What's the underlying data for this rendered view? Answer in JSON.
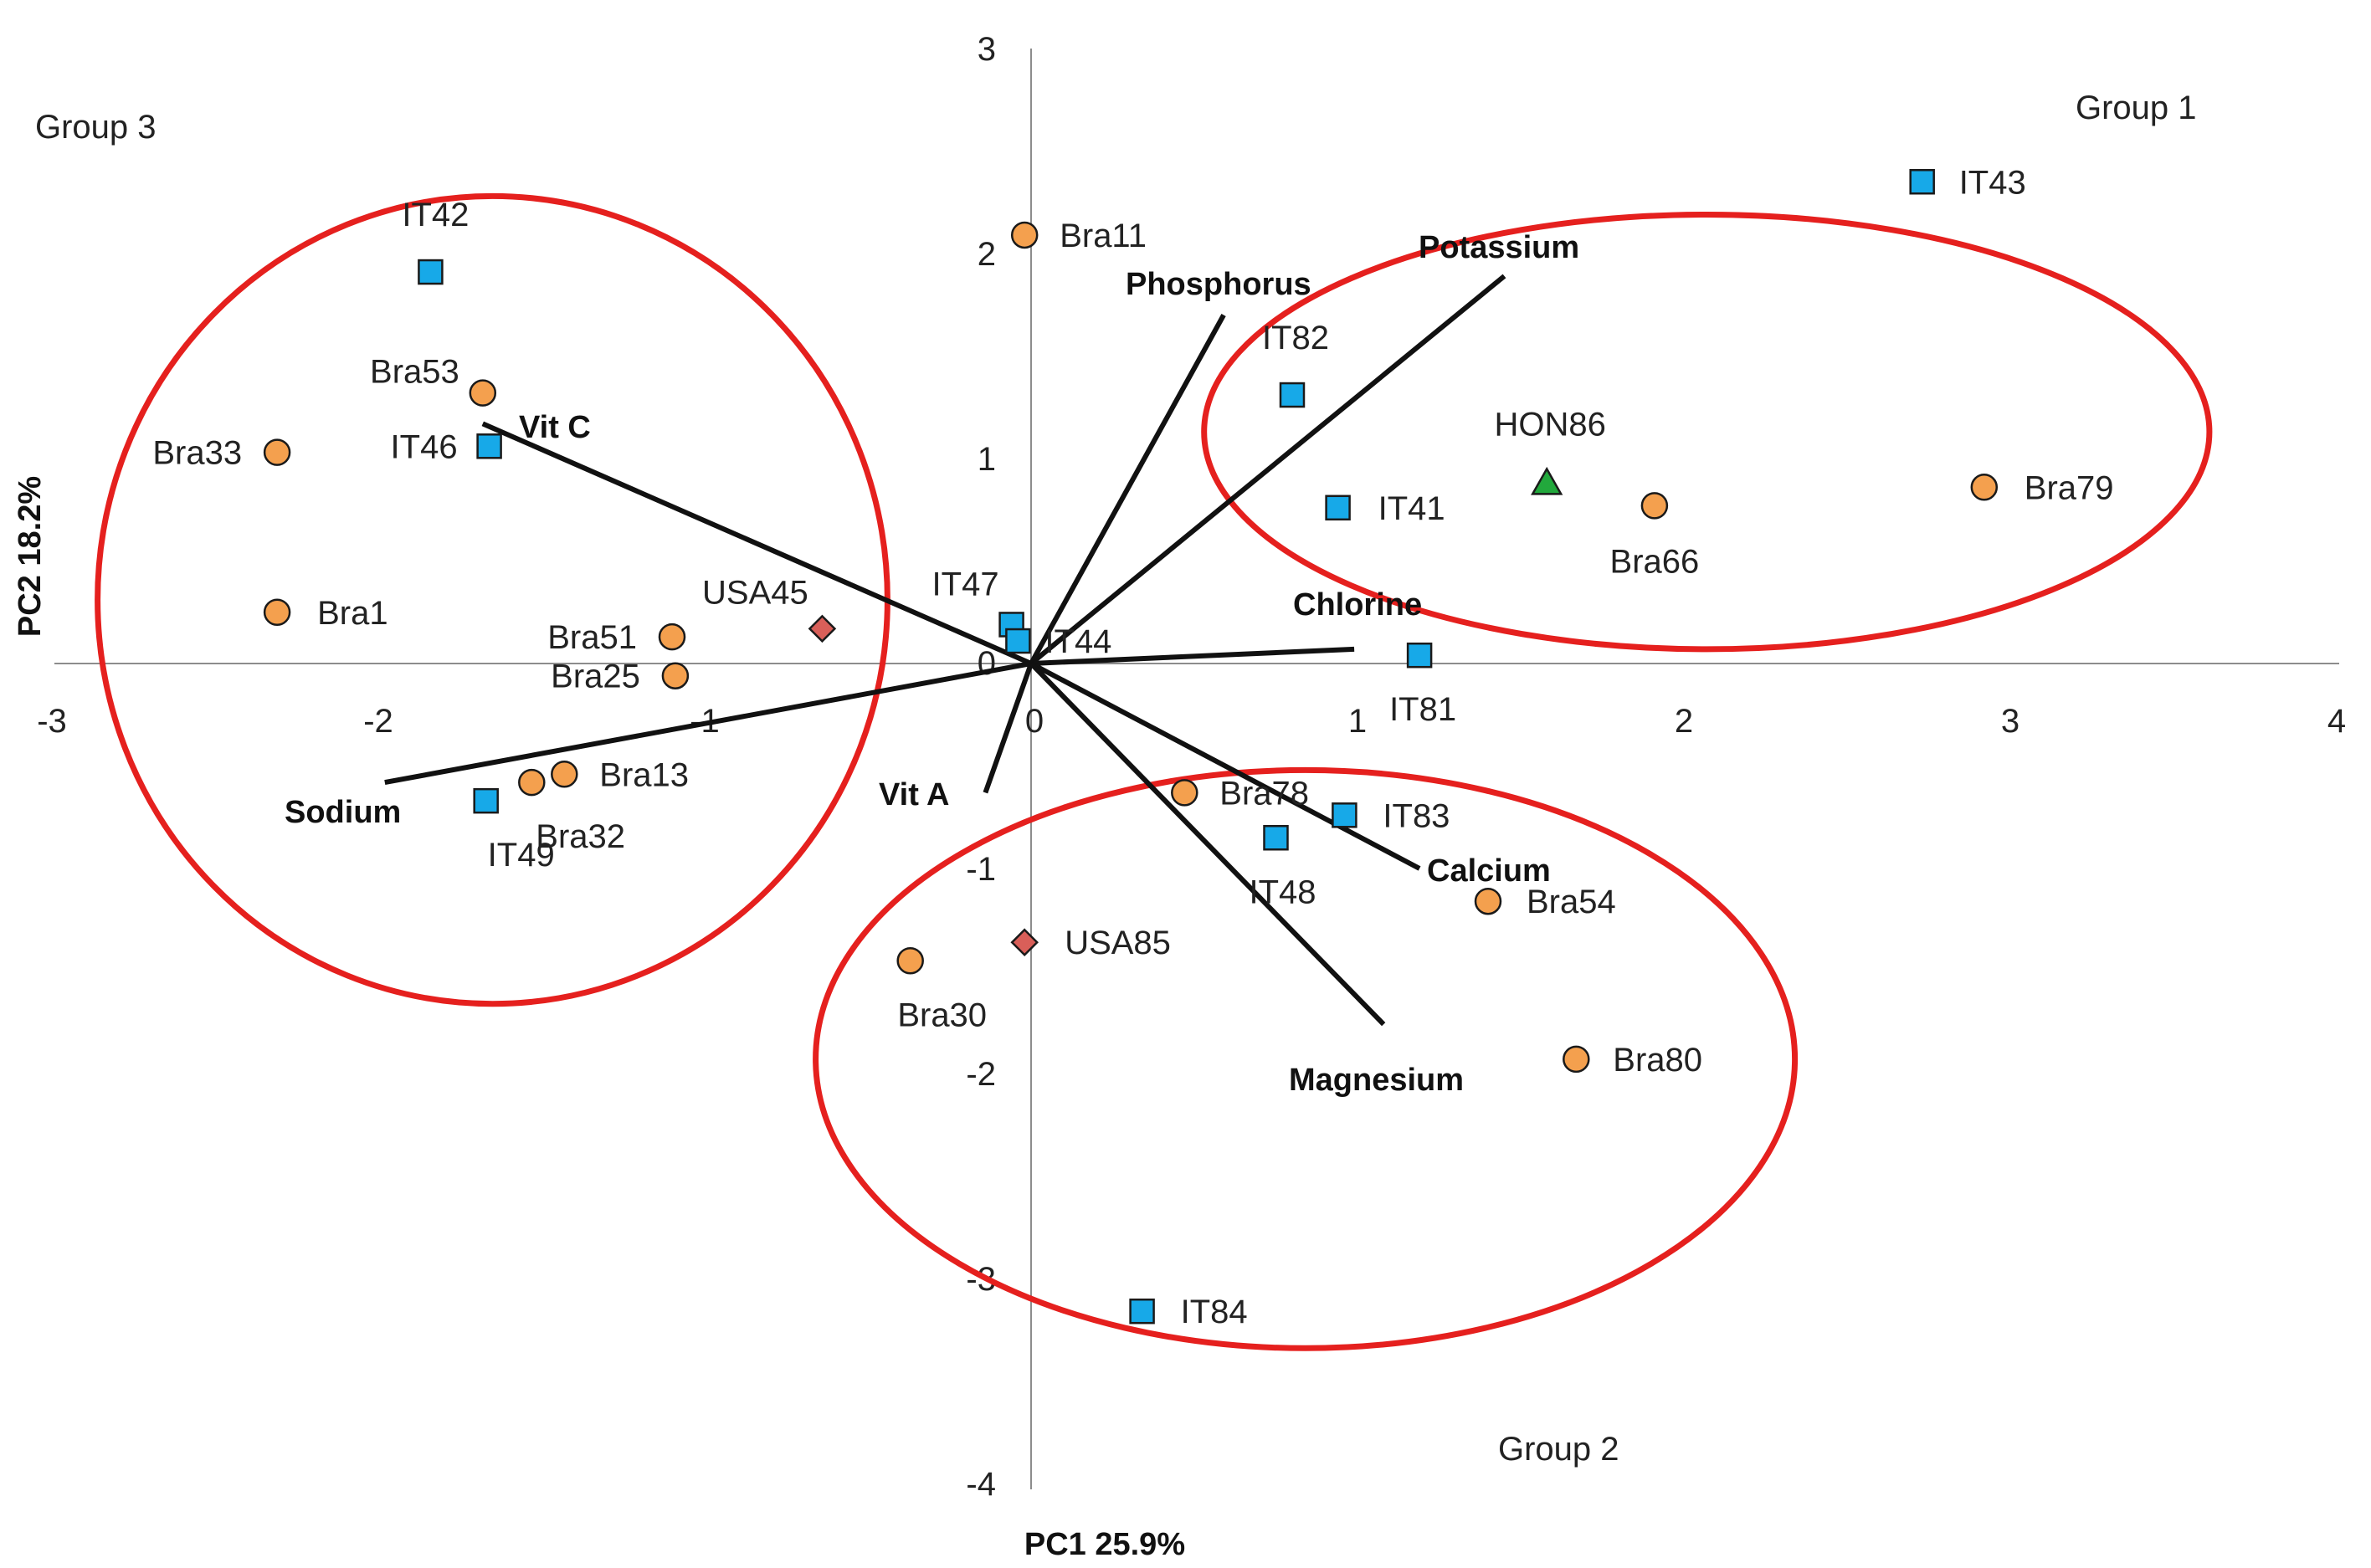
{
  "chart_data": {
    "type": "scatter",
    "title": "",
    "xlabel": "PC1 25.9%",
    "ylabel": "PC2 18.2%",
    "xlim": [
      -3,
      4
    ],
    "ylim": [
      -4,
      3
    ],
    "x_ticks": [
      -3,
      -2,
      -1,
      0,
      1,
      2,
      3,
      4
    ],
    "y_ticks": [
      -4,
      -3,
      -2,
      -1,
      0,
      1,
      2,
      3
    ],
    "tick_labels": {
      "x": [
        "-3",
        "-2",
        "-1",
        "0",
        "1",
        "2",
        "3",
        "4"
      ],
      "y": [
        "-4",
        "-3",
        "-2",
        "-1",
        "0",
        "1",
        "2",
        "3"
      ]
    },
    "grid": false,
    "colors": {
      "Bra": "#F4A04E",
      "IT": "#17A9E8",
      "USA": "#D95F59",
      "HON": "#22A83C",
      "ellipse": "#E5201E",
      "vector": "#111111",
      "axis": "#8C8C8C"
    },
    "series": [
      {
        "name": "Bra",
        "marker": "circle",
        "points": [
          {
            "label": "Bra11",
            "x": -0.02,
            "y": 2.09
          },
          {
            "label": "Bra53",
            "x": -1.68,
            "y": 1.32
          },
          {
            "label": "Bra33",
            "x": -2.31,
            "y": 1.03
          },
          {
            "label": "Bra1",
            "x": -2.31,
            "y": 0.25
          },
          {
            "label": "Bra51",
            "x": -1.1,
            "y": 0.13
          },
          {
            "label": "Bra25",
            "x": -1.09,
            "y": -0.06
          },
          {
            "label": "Bra13",
            "x": -1.43,
            "y": -0.54
          },
          {
            "label": "Bra32",
            "x": -1.53,
            "y": -0.58
          },
          {
            "label": "Bra78",
            "x": 0.47,
            "y": -0.63
          },
          {
            "label": "Bra30",
            "x": -0.37,
            "y": -1.45
          },
          {
            "label": "Bra54",
            "x": 1.4,
            "y": -1.16
          },
          {
            "label": "Bra80",
            "x": 1.67,
            "y": -1.93
          },
          {
            "label": "Bra66",
            "x": 1.91,
            "y": 0.77
          },
          {
            "label": "Bra79",
            "x": 2.92,
            "y": 0.86
          }
        ]
      },
      {
        "name": "IT",
        "marker": "square",
        "points": [
          {
            "label": "IT42",
            "x": -1.84,
            "y": 1.91
          },
          {
            "label": "IT46",
            "x": -1.66,
            "y": 1.06
          },
          {
            "label": "IT49",
            "x": -1.67,
            "y": -0.67
          },
          {
            "label": "IT47",
            "x": -0.06,
            "y": 0.19
          },
          {
            "label": "IT44",
            "x": -0.04,
            "y": 0.11
          },
          {
            "label": "IT82",
            "x": 0.8,
            "y": 1.31
          },
          {
            "label": "IT41",
            "x": 0.94,
            "y": 0.76
          },
          {
            "label": "IT81",
            "x": 1.19,
            "y": 0.04
          },
          {
            "label": "IT83",
            "x": 0.96,
            "y": -0.74
          },
          {
            "label": "IT48",
            "x": 0.75,
            "y": -0.85
          },
          {
            "label": "IT84",
            "x": 0.34,
            "y": -3.16
          },
          {
            "label": "IT43",
            "x": 2.73,
            "y": 2.35
          }
        ]
      },
      {
        "name": "USA",
        "marker": "diamond",
        "points": [
          {
            "label": "USA45",
            "x": -0.64,
            "y": 0.17
          },
          {
            "label": "USA85",
            "x": -0.02,
            "y": -1.36
          }
        ]
      },
      {
        "name": "HON",
        "marker": "triangle",
        "points": [
          {
            "label": "HON86",
            "x": 1.58,
            "y": 0.88
          }
        ]
      }
    ],
    "vectors": [
      {
        "label": "Potassium",
        "x": 1.45,
        "y": 1.89
      },
      {
        "label": "Phosphorus",
        "x": 0.59,
        "y": 1.7
      },
      {
        "label": "Vit C",
        "x": -1.68,
        "y": 1.17
      },
      {
        "label": "Chlorine",
        "x": 0.99,
        "y": 0.07
      },
      {
        "label": "Sodium",
        "x": -1.98,
        "y": -0.58
      },
      {
        "label": "Vit A",
        "x": -0.14,
        "y": -0.63
      },
      {
        "label": "Calcium",
        "x": 1.19,
        "y": -1.0
      },
      {
        "label": "Magnesium",
        "x": 1.08,
        "y": -1.76
      }
    ],
    "groups": [
      {
        "label": "Group 1",
        "center": [
          2.07,
          1.13
        ],
        "rx": 1.54,
        "ry": 1.06
      },
      {
        "label": "Group 2",
        "center": [
          0.84,
          -1.93
        ],
        "rx": 1.5,
        "ry": 1.41
      },
      {
        "label": "Group 3",
        "center": [
          -1.65,
          0.31
        ],
        "rx": 1.21,
        "ry": 1.97
      }
    ]
  }
}
